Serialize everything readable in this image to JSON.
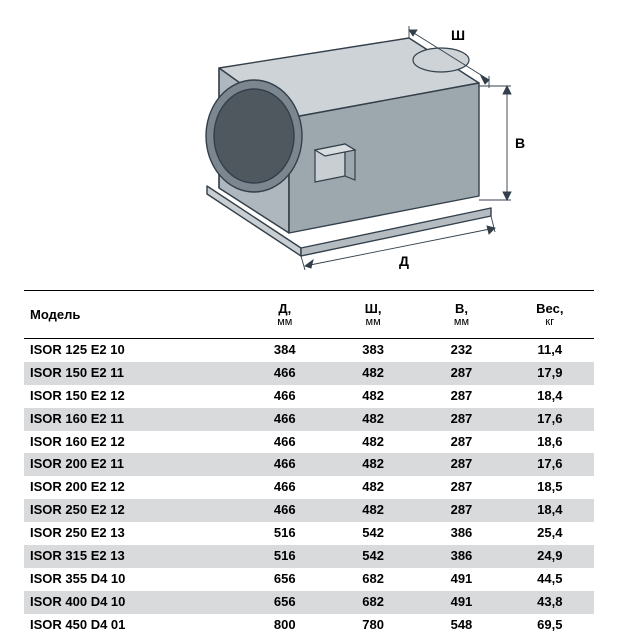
{
  "diagram": {
    "stroke": "#333f4a",
    "fill": "#aeb7bd",
    "label_top": "Ш",
    "label_side": "В",
    "label_bottom": "Д"
  },
  "table": {
    "headers": {
      "model": "Модель",
      "d": "Д,",
      "d_unit": "мм",
      "w": "Ш,",
      "w_unit": "мм",
      "h": "В,",
      "h_unit": "мм",
      "weight": "Вес,",
      "weight_unit": "кг"
    },
    "rows": [
      {
        "model": "ISOR 125 E2 10",
        "d": "384",
        "w": "383",
        "h": "232",
        "wt": "11,4",
        "shaded": false
      },
      {
        "model": "ISOR 150 E2 11",
        "d": "466",
        "w": "482",
        "h": "287",
        "wt": "17,9",
        "shaded": true
      },
      {
        "model": "ISOR 150 E2 12",
        "d": "466",
        "w": "482",
        "h": "287",
        "wt": "18,4",
        "shaded": false
      },
      {
        "model": "ISOR 160 E2 11",
        "d": "466",
        "w": "482",
        "h": "287",
        "wt": "17,6",
        "shaded": true
      },
      {
        "model": "ISOR 160 E2 12",
        "d": "466",
        "w": "482",
        "h": "287",
        "wt": "18,6",
        "shaded": false
      },
      {
        "model": "ISOR 200 E2 11",
        "d": "466",
        "w": "482",
        "h": "287",
        "wt": "17,6",
        "shaded": true
      },
      {
        "model": "ISOR 200 E2 12",
        "d": "466",
        "w": "482",
        "h": "287",
        "wt": "18,5",
        "shaded": false
      },
      {
        "model": "ISOR 250 E2 12",
        "d": "466",
        "w": "482",
        "h": "287",
        "wt": "18,4",
        "shaded": true
      },
      {
        "model": "ISOR 250 E2 13",
        "d": "516",
        "w": "542",
        "h": "386",
        "wt": "25,4",
        "shaded": false
      },
      {
        "model": "ISOR 315 E2 13",
        "d": "516",
        "w": "542",
        "h": "386",
        "wt": "24,9",
        "shaded": true
      },
      {
        "model": "ISOR 355 D4 10",
        "d": "656",
        "w": "682",
        "h": "491",
        "wt": "44,5",
        "shaded": false
      },
      {
        "model": "ISOR 400 D4 10",
        "d": "656",
        "w": "682",
        "h": "491",
        "wt": "43,8",
        "shaded": true
      },
      {
        "model": "ISOR 450 D4 01",
        "d": "800",
        "w": "780",
        "h": "548",
        "wt": "69,5",
        "shaded": false
      }
    ]
  }
}
